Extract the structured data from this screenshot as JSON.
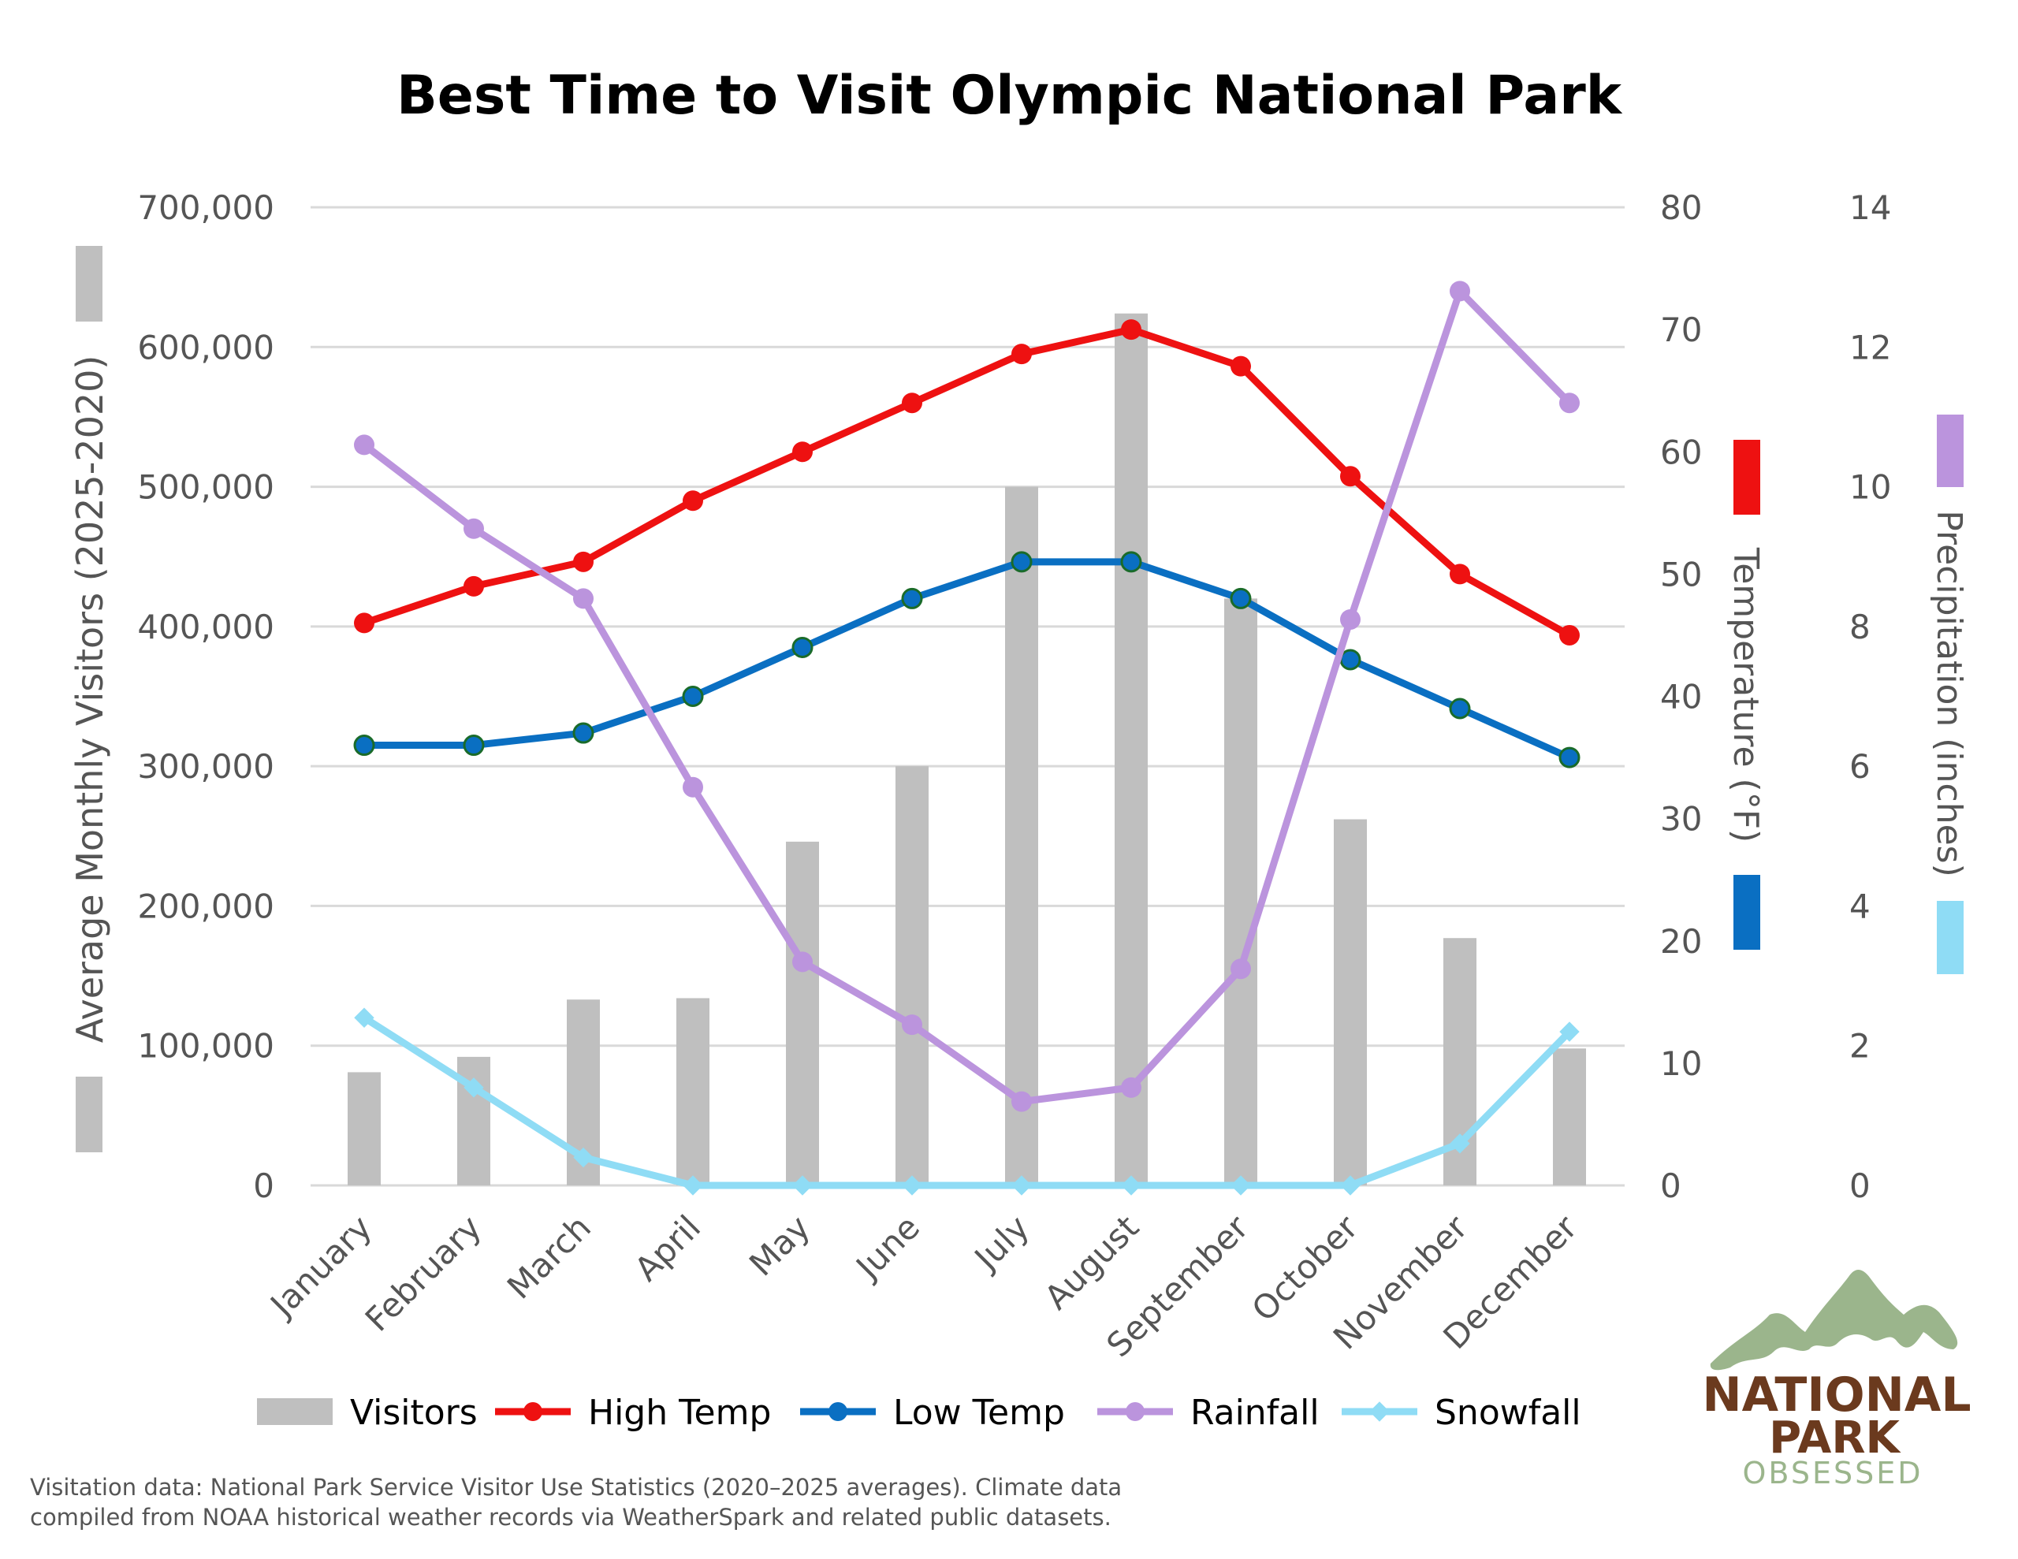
{
  "chart_data": {
    "type": "bar+line",
    "title": "Best Time to Visit Olympic National Park",
    "categories": [
      "January",
      "February",
      "March",
      "April",
      "May",
      "June",
      "July",
      "August",
      "September",
      "October",
      "November",
      "December"
    ],
    "axes": {
      "left": {
        "label": "Average Monthly Visitors (2025-2020)",
        "range": [
          0,
          700000
        ],
        "ticks": [
          "0",
          "100,000",
          "200,000",
          "300,000",
          "400,000",
          "500,000",
          "600,000",
          "700,000"
        ]
      },
      "right_temp": {
        "label": "Temperature (°F)",
        "range": [
          0,
          80
        ],
        "ticks": [
          "0",
          "10",
          "20",
          "30",
          "40",
          "50",
          "60",
          "70",
          "80"
        ]
      },
      "right_precip": {
        "label": "Precipitation (inches)",
        "range": [
          0,
          14
        ],
        "ticks": [
          "0",
          "2",
          "4",
          "6",
          "8",
          "10",
          "12",
          "14"
        ]
      }
    },
    "grid": true,
    "legend_position": "bottom",
    "series": [
      {
        "name": "Visitors",
        "type": "bar",
        "axis": "left",
        "color": "#bfbfbf",
        "values": [
          81000,
          92000,
          133000,
          134000,
          246000,
          300000,
          500000,
          624000,
          420000,
          262000,
          177000,
          98000
        ]
      },
      {
        "name": "High Temp",
        "type": "line",
        "axis": "right_temp",
        "color": "#ee1111",
        "values": [
          46,
          49,
          51,
          56,
          60,
          64,
          68,
          70,
          67,
          58,
          50,
          45
        ]
      },
      {
        "name": "Low Temp",
        "type": "line",
        "axis": "right_temp",
        "color": "#0a6fc2",
        "values": [
          36,
          36,
          37,
          40,
          44,
          48,
          51,
          51,
          48,
          43,
          39,
          35
        ]
      },
      {
        "name": "Rainfall",
        "type": "line",
        "axis": "right_precip",
        "color": "#bb94dd",
        "values": [
          10.6,
          9.4,
          8.4,
          5.7,
          3.2,
          2.3,
          1.2,
          1.4,
          3.1,
          8.1,
          12.8,
          11.2
        ]
      },
      {
        "name": "Snowfall",
        "type": "line",
        "axis": "right_precip",
        "color": "#8fdcf5",
        "values": [
          2.4,
          1.4,
          0.4,
          0,
          0,
          0,
          0,
          0,
          0,
          0,
          0.6,
          2.2
        ]
      }
    ]
  },
  "footnote": {
    "line1": "Visitation data: National Park Service Visitor Use Statistics (2020–2025 averages). Climate data",
    "line2": "compiled from NOAA historical weather records via WeatherSpark and related public datasets."
  },
  "logo": {
    "line1": "NATIONAL",
    "line2": "PARK",
    "line3": "OBSESSED"
  }
}
